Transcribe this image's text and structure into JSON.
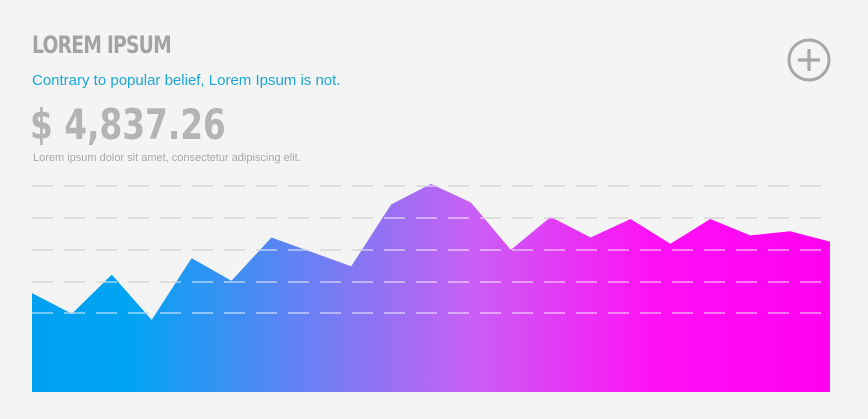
{
  "header": {
    "title": "LOREM IPSUM",
    "subtitle": "Contrary to popular belief, Lorem Ipsum is not.",
    "price": "$ 4,837.26",
    "description": "Lorem ipsum dolor sit amet, consectetur adipiscing elit.",
    "add_icon": "plus-circle-icon"
  },
  "colors": {
    "title": "#a3a3a3",
    "subtitle": "#1ba8d6",
    "gradient_start": "#00a0f0",
    "gradient_end": "#ff00f0",
    "gridline": "#c4c4c4"
  },
  "chart_data": {
    "type": "area",
    "title": "",
    "xlabel": "",
    "ylabel": "",
    "grid": true,
    "gridline_style": "dashed",
    "x": [
      0,
      1,
      2,
      3,
      4,
      5,
      6,
      7,
      8,
      9,
      10,
      11,
      12,
      13,
      14,
      15,
      16,
      17,
      18,
      19,
      20
    ],
    "values": [
      48,
      38,
      57,
      35,
      65,
      54,
      75,
      68,
      61,
      91,
      101,
      92,
      69,
      85,
      75,
      84,
      72,
      84,
      76,
      78,
      73
    ],
    "ylim": [
      0,
      100
    ],
    "series_count": 1
  }
}
